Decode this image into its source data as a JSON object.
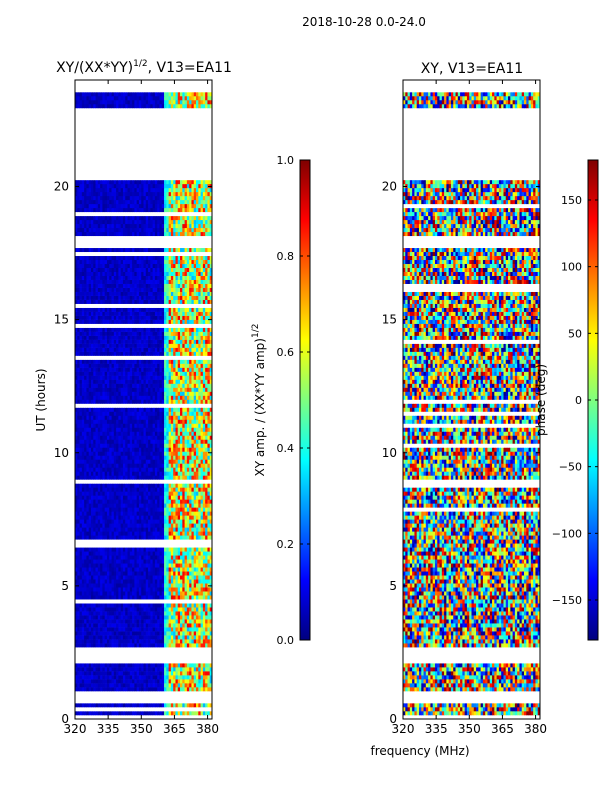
{
  "suptitle": "2018-10-28 0.0-24.0",
  "shared_xlabel": "frequency (MHz)",
  "colormap": {
    "name": "jet",
    "stops": [
      "#00007f",
      "#0000ff",
      "#007fff",
      "#00ffff",
      "#7fff7f",
      "#ffff00",
      "#ff7f00",
      "#ff0000",
      "#7f0000"
    ]
  },
  "flag_color": "#ffffff",
  "chart_data": [
    {
      "type": "heatmap",
      "title_main": "XY/(XX*YY)",
      "title_exp": "1/2",
      "title_tail": ", V13=EA11",
      "xlabel": "",
      "ylabel": "UT (hours)",
      "xlim": [
        320,
        382
      ],
      "ylim": [
        0,
        24
      ],
      "xticks": [
        "320",
        "335",
        "350",
        "365",
        "380"
      ],
      "yticks": [
        "0",
        "5",
        "10",
        "15",
        "20"
      ],
      "description": "normalized XY amplitude per frequency channel vs UT; low (~0.05) below 360 MHz, elevated (0.3-0.9) in 360-382 MHz band",
      "flagged_hour_ranges": [
        [
          0.05,
          0.12
        ],
        [
          0.55,
          1.1
        ],
        [
          2.1,
          2.65
        ],
        [
          8.8,
          9.05
        ],
        [
          17.7,
          18.1
        ],
        [
          20.2,
          22.9
        ],
        [
          23.5,
          24.0
        ]
      ]
    },
    {
      "type": "colorbar",
      "label_main": "XY amp. / (XX*YY amp)",
      "label_exp": "1/2",
      "range": [
        0.0,
        1.0
      ],
      "ticks": [
        "0.0",
        "0.2",
        "0.4",
        "0.6",
        "0.8",
        "1.0"
      ]
    },
    {
      "type": "heatmap",
      "title": "XY, V13=EA11",
      "xlabel": "frequency (MHz)",
      "ylabel": "",
      "xlim": [
        320,
        382
      ],
      "ylim": [
        0,
        24
      ],
      "xticks": [
        "320",
        "335",
        "350",
        "365",
        "380"
      ],
      "yticks": [
        "0",
        "5",
        "10",
        "15",
        "20"
      ],
      "description": "XY phase (deg) per frequency channel vs UT; values spread across -180..180",
      "flagged_hour_ranges": [
        [
          0.05,
          0.12
        ],
        [
          0.55,
          1.1
        ],
        [
          2.1,
          2.65
        ],
        [
          8.8,
          9.05
        ],
        [
          17.7,
          18.1
        ],
        [
          20.2,
          22.9
        ],
        [
          23.5,
          24.0
        ]
      ]
    },
    {
      "type": "colorbar",
      "label": "phase (deg)",
      "range": [
        -180,
        180
      ],
      "ticks": [
        "150",
        "100",
        "50",
        "0",
        "−50",
        "−100",
        "−150"
      ],
      "tick_values": [
        150,
        100,
        50,
        0,
        -50,
        -100,
        -150
      ]
    }
  ]
}
